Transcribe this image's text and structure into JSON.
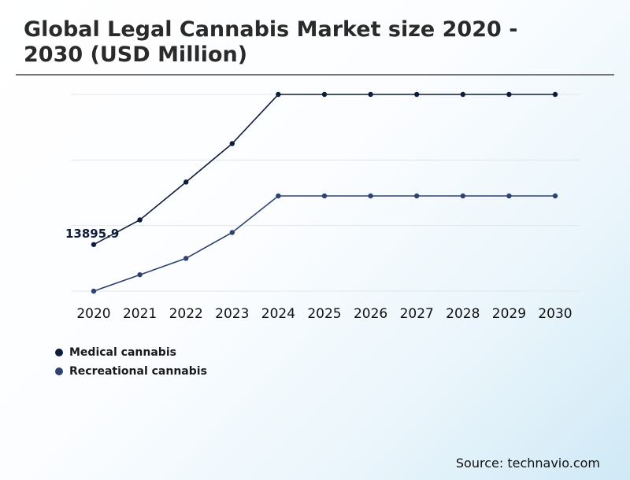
{
  "title": "Global Legal Cannabis Market size 2020 - 2030 (USD Million)",
  "source": "Source: technavio.com",
  "colors": {
    "medical": "#0f1d3d",
    "recreational": "#2e4170",
    "grid": "#e3e6ea"
  },
  "chart_data": {
    "type": "line",
    "title": "Global Legal Cannabis Market size 2020 - 2030 (USD Million)",
    "xlabel": "",
    "ylabel": "",
    "categories": [
      "2020",
      "2021",
      "2022",
      "2023",
      "2024",
      "2025",
      "2026",
      "2027",
      "2028",
      "2029",
      "2030"
    ],
    "series": [
      {
        "name": "Medical cannabis",
        "values": [
          13895.9,
          15850,
          18850,
          21900,
          25800,
          25800,
          25800,
          25800,
          25800,
          25800,
          25800
        ]
      },
      {
        "name": "Recreational cannabis",
        "values": [
          10200,
          11500,
          12800,
          14850,
          17750,
          17750,
          17750,
          17750,
          17750,
          17750,
          17750
        ]
      }
    ],
    "annotations": [
      {
        "series": 0,
        "index": 0,
        "label": "13895.9"
      }
    ],
    "ylim": [
      10200,
      25800
    ],
    "grid": true,
    "legend": "bottom-left"
  }
}
